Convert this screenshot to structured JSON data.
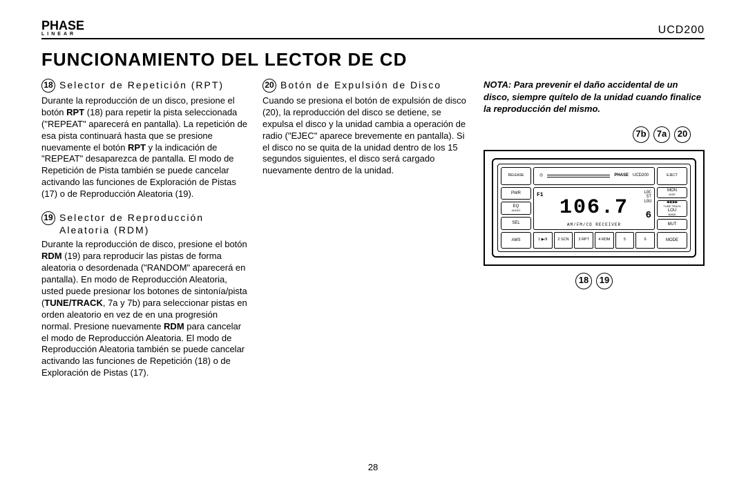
{
  "header": {
    "brand_top": "PHASE",
    "brand_sub": "LINEAR",
    "model": "UCD200"
  },
  "title": "FUNCIONAMIENTO DEL LECTOR DE CD",
  "section18": {
    "num": "18",
    "head": "Selector de Repetición (RPT)",
    "body_a": "Durante la reproducción de un disco, presione el botón ",
    "bold_a": "RPT",
    "body_b": " (18) para repetir la pista seleccionada (\"REPEAT\" aparecerá en pantalla). La repetición de esa pista continuará hasta que se presione nuevamente el botón ",
    "bold_b": "RPT",
    "body_c": " y la indicación de \"REPEAT\" desaparezca de pantalla. El modo de Repetición de Pista también se puede cancelar activando las funciones de Exploración de Pistas (17) o de Reproducción Aleatoria (19)."
  },
  "section19": {
    "num": "19",
    "head": "Selector de Reproducción Aleatoria (RDM)",
    "body_a": "Durante la reproducción de disco, presione el botón ",
    "bold_a": "RDM",
    "body_b": " (19) para reproducir las pistas de forma aleatoria o desordenada (\"RANDOM\" aparecerá en pantalla). En modo de Reproducción Aleatoria, usted puede presionar los botones de sintonía/pista (",
    "bold_b": "TUNE/TRACK",
    "body_c": ", 7a y 7b) para seleccionar pistas en orden aleatorio en vez de en una progresión normal. Presione nuevamente ",
    "bold_c": "RDM",
    "body_d": " para cancelar el modo de Reproducción Aleatoria.  El modo de Reproducción Aleatoria también se puede cancelar activando las funciones de Repetición (18) o de Exploración de Pistas (17)."
  },
  "section20": {
    "num": "20",
    "head": "Botón de Expulsión de Disco",
    "body": "Cuando se presiona el botón de expulsión de disco (20), la reproducción del disco se detiene, se expulsa el disco y la unidad cambia a operación de radio (\"EJEC\" aparece brevemente en pantalla). Si el disco no se quita de la unidad dentro de los 15 segundos siguientes, el disco será cargado nuevamente dentro de la unidad."
  },
  "note": "NOTA: Para prevenir el daño accidental de un disco, siempre quítelo de la unidad cuando finalice la reproducción del mismo.",
  "diagram": {
    "callout_7b": "7b",
    "callout_7a": "7a",
    "callout_20": "20",
    "callout_18": "18",
    "callout_19": "19",
    "btn_release": "RELEASE",
    "btn_pwr": "PWR",
    "btn_eq": "EQ",
    "btn_audio": "AUDIO",
    "btn_sel": "SEL",
    "btn_eject": "EJECT",
    "btn_mon": "MON",
    "btn_disp": "DISP",
    "btn_lou": "LOU",
    "btn_tune": "TUNE TRACK",
    "btn_band": "BAND",
    "btn_mut": "MUT",
    "btn_ams": "AMS",
    "btn_p1": "1 ▶/II",
    "btn_p2": "2 SCN",
    "btn_p3": "3 RPT",
    "btn_p4": "4 RDM",
    "btn_p5": "5",
    "btn_p6": "6",
    "btn_mode": "MODE",
    "lcd_band": "F1",
    "lcd_freq": "106.7",
    "lcd_sub": "AM/FM/CD RECEIVER",
    "lcd_loc": "LOC",
    "lcd_st": "ST",
    "lcd_lou": "LOU",
    "lcd_preset": "6",
    "brand_mini": "PHASE",
    "model_mini": "UCD200"
  },
  "page": "28"
}
